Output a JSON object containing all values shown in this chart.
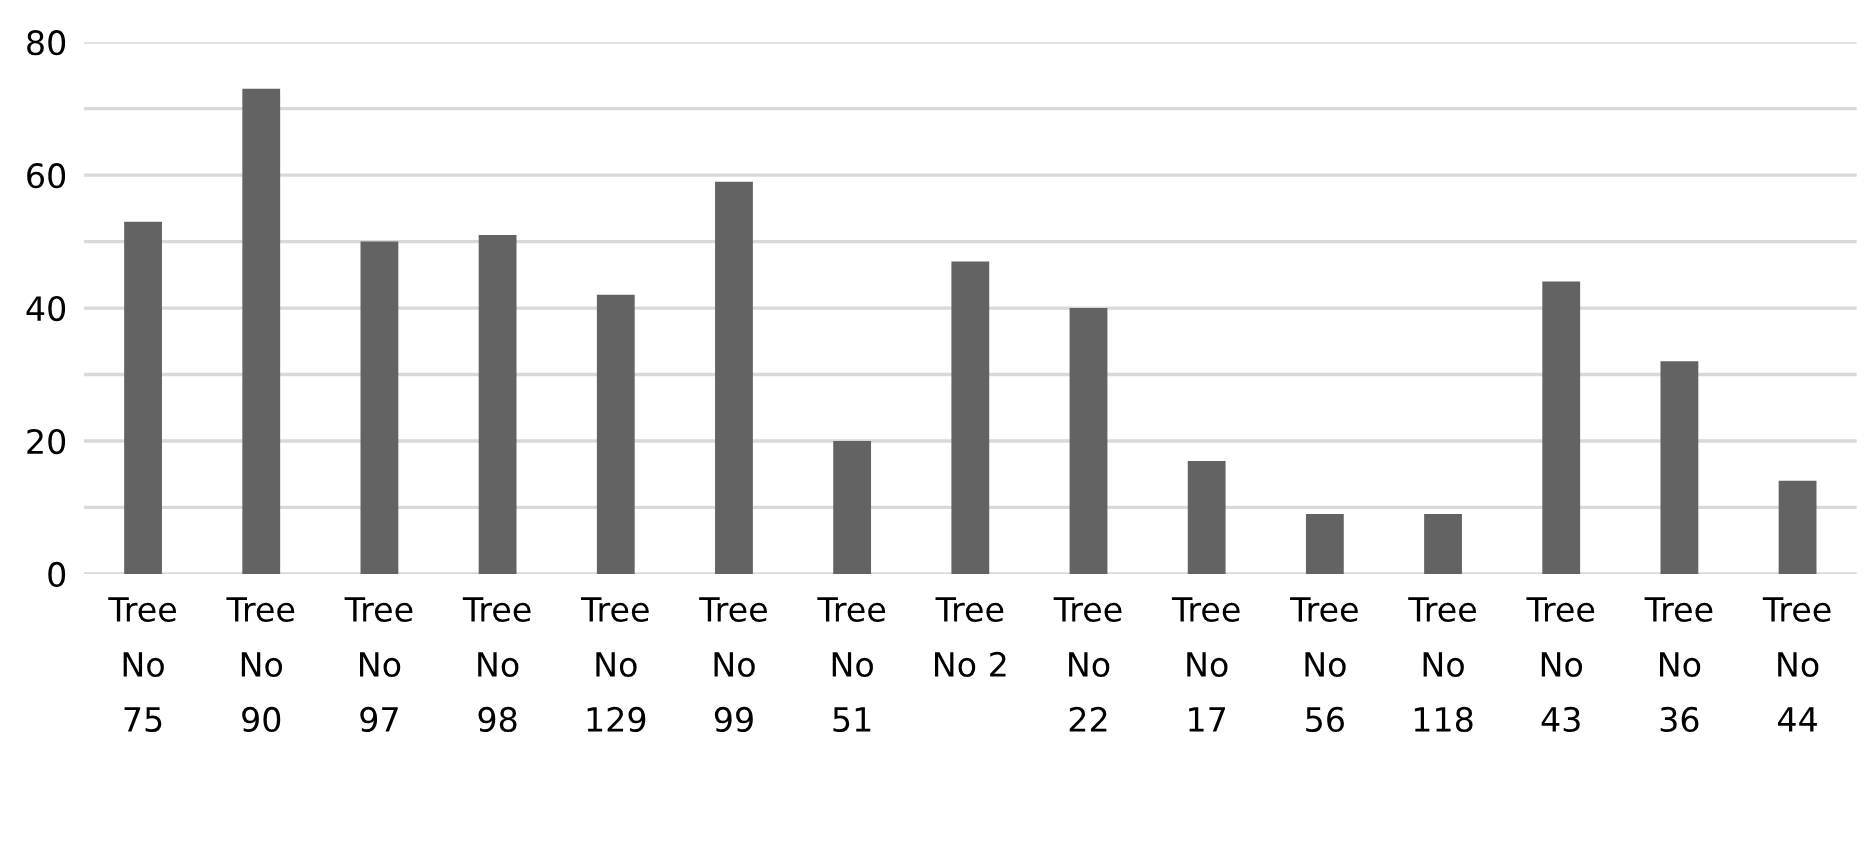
{
  "chart_data": {
    "type": "bar",
    "categories": [
      "Tree No 75",
      "Tree No 90",
      "Tree No 97",
      "Tree No 98",
      "Tree No 129",
      "Tree No 99",
      "Tree No 51",
      "Tree No 2",
      "Tree No 22",
      "Tree No 17",
      "Tree No 56",
      "Tree No 118",
      "Tree No 43",
      "Tree No 36",
      "Tree No 44"
    ],
    "values": [
      53,
      73,
      50,
      51,
      42,
      59,
      20,
      47,
      40,
      17,
      9,
      9,
      44,
      32,
      14
    ],
    "color": "#636363",
    "ylim": [
      0,
      80
    ],
    "yticks": [
      0,
      {
        "value": 10,
        "label": null
      },
      20,
      {
        "value": 30,
        "label": null
      },
      40,
      {
        "value": 50,
        "label": null
      },
      60,
      {
        "value": 70,
        "label": null
      },
      80
    ],
    "grid": "y"
  }
}
